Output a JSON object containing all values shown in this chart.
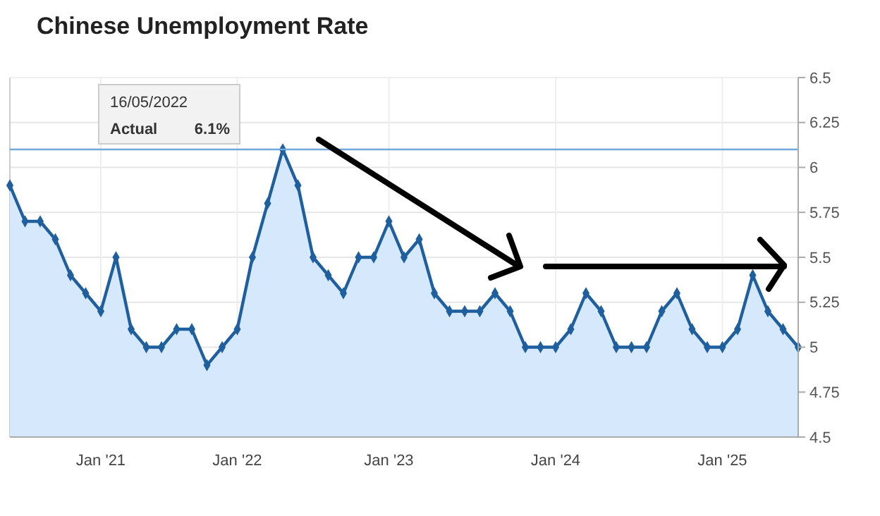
{
  "chart_data": {
    "type": "area",
    "title": "Chinese Unemployment Rate",
    "categories": [
      null,
      null,
      null,
      null,
      null,
      null,
      "Jan '21",
      null,
      null,
      null,
      null,
      null,
      null,
      null,
      null,
      "Jan '22",
      null,
      null,
      null,
      null,
      null,
      null,
      null,
      null,
      null,
      "Jan '23",
      null,
      null,
      null,
      null,
      null,
      null,
      null,
      null,
      null,
      null,
      "Jan '24",
      null,
      null,
      null,
      null,
      null,
      null,
      null,
      null,
      null,
      null,
      "Jan '25",
      null,
      null,
      null,
      null,
      null
    ],
    "series": [
      {
        "color": "#1f5f9e",
        "values": [
          5.9,
          5.7,
          5.7,
          5.6,
          5.4,
          5.3,
          5.2,
          5.5,
          5.1,
          5.0,
          5.0,
          5.1,
          5.1,
          4.9,
          5.0,
          5.1,
          5.5,
          5.8,
          6.1,
          5.9,
          5.5,
          5.4,
          5.3,
          5.5,
          5.5,
          5.7,
          5.5,
          5.6,
          5.3,
          5.2,
          5.2,
          5.2,
          5.3,
          5.2,
          5.0,
          5.0,
          5.0,
          5.1,
          5.3,
          5.2,
          5.0,
          5.0,
          5.0,
          5.2,
          5.3,
          5.1,
          5.0,
          5.0,
          5.1,
          5.4,
          5.2,
          5.1,
          5.0
        ]
      }
    ],
    "ylim": [
      4.5,
      6.5
    ],
    "yticks": [
      4.5,
      4.75,
      5,
      5.25,
      5.5,
      5.75,
      6,
      6.25,
      6.5
    ],
    "grid": true,
    "marker": "diamond",
    "line_style": "solid",
    "ref_lines": [
      {
        "axis": "y",
        "value": 6.1,
        "color": "#6fa8dc"
      }
    ],
    "annotations": [
      "16/05/2022",
      "Actual",
      "6.1%"
    ]
  }
}
